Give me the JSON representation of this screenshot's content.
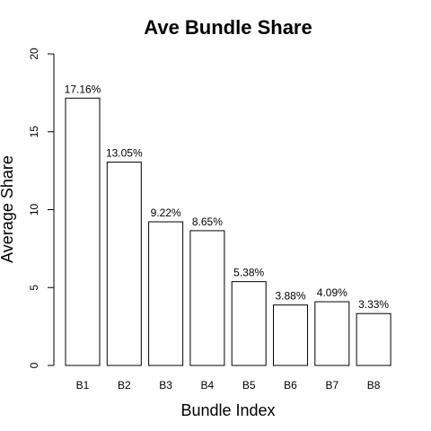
{
  "chart_data": {
    "type": "bar",
    "title": "Ave Bundle Share",
    "xlabel": "Bundle Index",
    "ylabel": "Average Share",
    "categories": [
      "B1",
      "B2",
      "B3",
      "B4",
      "B5",
      "B6",
      "B7",
      "B8"
    ],
    "values": [
      17.16,
      13.05,
      9.22,
      8.65,
      5.38,
      3.88,
      4.09,
      3.33
    ],
    "data_labels": [
      "17.16%",
      "13.05%",
      "9.22%",
      "8.65%",
      "5.38%",
      "3.88%",
      "4.09%",
      "3.33%"
    ],
    "ylim": [
      0,
      20
    ],
    "yticks": [
      "0",
      "5",
      "10",
      "15",
      "20"
    ],
    "grid": false,
    "legend": "none",
    "bar_fill": "#ffffff",
    "bar_stroke": "#000000"
  }
}
